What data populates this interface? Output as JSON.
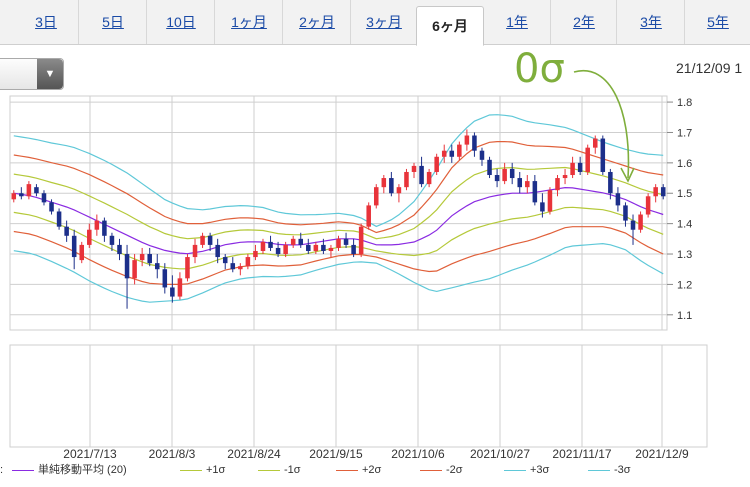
{
  "tabs": [
    {
      "label": "3日",
      "active": false
    },
    {
      "label": "5日",
      "active": false
    },
    {
      "label": "10日",
      "active": false
    },
    {
      "label": "1ヶ月",
      "active": false
    },
    {
      "label": "2ヶ月",
      "active": false
    },
    {
      "label": "3ヶ月",
      "active": false
    },
    {
      "label": "6ヶ月",
      "active": true
    },
    {
      "label": "1年",
      "active": false
    },
    {
      "label": "2年",
      "active": false
    },
    {
      "label": "3年",
      "active": false
    },
    {
      "label": "5年",
      "active": false
    }
  ],
  "annotation": "0σ",
  "date_label": "21/12/09 1",
  "legend_prefix": ":",
  "legend": [
    {
      "label": "単純移動平均 (20)",
      "color": "#8a2be2"
    },
    {
      "label": "+1σ",
      "color": "#b5c93a"
    },
    {
      "label": "-1σ",
      "color": "#b5c93a"
    },
    {
      "label": "+2σ",
      "color": "#e0603a"
    },
    {
      "label": "-2σ",
      "color": "#e0603a"
    },
    {
      "label": "+3σ",
      "color": "#5fc8d8"
    },
    {
      "label": "-3σ",
      "color": "#5fc8d8"
    }
  ],
  "colors": {
    "up": "#e8333a",
    "down": "#1c2f8a",
    "grid": "#cfcfcf",
    "arrow": "#7fae3c"
  },
  "chart_data": {
    "type": "candlestick",
    "y_ticks": [
      "1.8",
      "1.7",
      "1.6",
      "1.5",
      "1.4",
      "1.3",
      "1.2",
      "1.1"
    ],
    "ylim": [
      1.05,
      1.82
    ],
    "x_ticks": [
      "2021/7/13",
      "2021/8/3",
      "2021/8/24",
      "2021/9/15",
      "2021/10/6",
      "2021/10/27",
      "2021/11/17",
      "2021/12/9"
    ],
    "sma20": [
      1.5,
      1.49,
      1.47,
      1.45,
      1.42,
      1.39,
      1.36,
      1.33,
      1.31,
      1.3,
      1.31,
      1.33,
      1.34,
      1.34,
      1.33,
      1.33,
      1.34,
      1.35,
      1.35,
      1.33,
      1.33,
      1.34,
      1.37,
      1.43,
      1.47,
      1.49,
      1.5,
      1.5,
      1.51,
      1.52,
      1.51,
      1.5,
      1.48,
      1.45,
      1.43
    ],
    "sigma1": [
      0.063,
      0.063,
      0.065,
      0.068,
      0.07,
      0.07,
      0.068,
      0.063,
      0.055,
      0.05,
      0.045,
      0.042,
      0.04,
      0.038,
      0.035,
      0.033,
      0.03,
      0.028,
      0.025,
      0.02,
      0.03,
      0.045,
      0.065,
      0.08,
      0.088,
      0.09,
      0.085,
      0.078,
      0.072,
      0.065,
      0.06,
      0.055,
      0.055,
      0.06,
      0.065
    ],
    "candles": [
      [
        1.48,
        1.51,
        1.47,
        1.5
      ],
      [
        1.5,
        1.52,
        1.48,
        1.49
      ],
      [
        1.49,
        1.54,
        1.48,
        1.53
      ],
      [
        1.52,
        1.53,
        1.49,
        1.5
      ],
      [
        1.5,
        1.51,
        1.46,
        1.47
      ],
      [
        1.47,
        1.48,
        1.43,
        1.44
      ],
      [
        1.44,
        1.45,
        1.38,
        1.39
      ],
      [
        1.39,
        1.41,
        1.34,
        1.36
      ],
      [
        1.36,
        1.38,
        1.25,
        1.29
      ],
      [
        1.28,
        1.34,
        1.27,
        1.33
      ],
      [
        1.33,
        1.4,
        1.32,
        1.38
      ],
      [
        1.38,
        1.43,
        1.36,
        1.41
      ],
      [
        1.41,
        1.42,
        1.34,
        1.36
      ],
      [
        1.36,
        1.37,
        1.31,
        1.33
      ],
      [
        1.33,
        1.35,
        1.28,
        1.3
      ],
      [
        1.3,
        1.33,
        1.12,
        1.22
      ],
      [
        1.22,
        1.3,
        1.2,
        1.28
      ],
      [
        1.28,
        1.32,
        1.26,
        1.3
      ],
      [
        1.3,
        1.32,
        1.26,
        1.27
      ],
      [
        1.27,
        1.3,
        1.22,
        1.25
      ],
      [
        1.25,
        1.27,
        1.17,
        1.19
      ],
      [
        1.19,
        1.23,
        1.14,
        1.16
      ],
      [
        1.16,
        1.24,
        1.15,
        1.22
      ],
      [
        1.22,
        1.3,
        1.21,
        1.29
      ],
      [
        1.29,
        1.35,
        1.27,
        1.33
      ],
      [
        1.33,
        1.37,
        1.32,
        1.36
      ],
      [
        1.36,
        1.37,
        1.31,
        1.33
      ],
      [
        1.33,
        1.35,
        1.27,
        1.29
      ],
      [
        1.29,
        1.3,
        1.25,
        1.27
      ],
      [
        1.27,
        1.29,
        1.24,
        1.25
      ],
      [
        1.25,
        1.27,
        1.23,
        1.26
      ],
      [
        1.26,
        1.3,
        1.25,
        1.29
      ],
      [
        1.29,
        1.33,
        1.28,
        1.31
      ],
      [
        1.31,
        1.35,
        1.3,
        1.34
      ],
      [
        1.34,
        1.36,
        1.31,
        1.32
      ],
      [
        1.32,
        1.34,
        1.29,
        1.3
      ],
      [
        1.3,
        1.34,
        1.29,
        1.33
      ],
      [
        1.33,
        1.36,
        1.32,
        1.35
      ],
      [
        1.35,
        1.37,
        1.32,
        1.33
      ],
      [
        1.33,
        1.35,
        1.3,
        1.31
      ],
      [
        1.31,
        1.34,
        1.3,
        1.33
      ],
      [
        1.33,
        1.35,
        1.3,
        1.31
      ],
      [
        1.31,
        1.33,
        1.29,
        1.32
      ],
      [
        1.32,
        1.36,
        1.31,
        1.35
      ],
      [
        1.35,
        1.37,
        1.32,
        1.33
      ],
      [
        1.33,
        1.35,
        1.29,
        1.3
      ],
      [
        1.3,
        1.4,
        1.29,
        1.39
      ],
      [
        1.39,
        1.47,
        1.38,
        1.46
      ],
      [
        1.46,
        1.53,
        1.45,
        1.52
      ],
      [
        1.52,
        1.56,
        1.5,
        1.55
      ],
      [
        1.55,
        1.57,
        1.49,
        1.5
      ],
      [
        1.5,
        1.53,
        1.47,
        1.52
      ],
      [
        1.52,
        1.58,
        1.51,
        1.57
      ],
      [
        1.57,
        1.6,
        1.55,
        1.59
      ],
      [
        1.59,
        1.62,
        1.52,
        1.53
      ],
      [
        1.53,
        1.58,
        1.52,
        1.57
      ],
      [
        1.57,
        1.63,
        1.56,
        1.62
      ],
      [
        1.62,
        1.66,
        1.6,
        1.64
      ],
      [
        1.64,
        1.66,
        1.6,
        1.62
      ],
      [
        1.62,
        1.67,
        1.61,
        1.66
      ],
      [
        1.66,
        1.71,
        1.64,
        1.69
      ],
      [
        1.69,
        1.7,
        1.62,
        1.64
      ],
      [
        1.64,
        1.65,
        1.59,
        1.61
      ],
      [
        1.61,
        1.62,
        1.55,
        1.56
      ],
      [
        1.56,
        1.58,
        1.52,
        1.54
      ],
      [
        1.54,
        1.6,
        1.53,
        1.58
      ],
      [
        1.58,
        1.6,
        1.53,
        1.55
      ],
      [
        1.55,
        1.57,
        1.5,
        1.52
      ],
      [
        1.52,
        1.56,
        1.5,
        1.54
      ],
      [
        1.54,
        1.56,
        1.46,
        1.47
      ],
      [
        1.47,
        1.5,
        1.42,
        1.44
      ],
      [
        1.44,
        1.52,
        1.43,
        1.51
      ],
      [
        1.51,
        1.56,
        1.49,
        1.55
      ],
      [
        1.55,
        1.58,
        1.53,
        1.56
      ],
      [
        1.56,
        1.62,
        1.55,
        1.6
      ],
      [
        1.6,
        1.62,
        1.56,
        1.57
      ],
      [
        1.57,
        1.66,
        1.56,
        1.65
      ],
      [
        1.65,
        1.69,
        1.63,
        1.68
      ],
      [
        1.68,
        1.69,
        1.56,
        1.57
      ],
      [
        1.57,
        1.58,
        1.48,
        1.5
      ],
      [
        1.5,
        1.52,
        1.44,
        1.46
      ],
      [
        1.46,
        1.47,
        1.39,
        1.41
      ],
      [
        1.41,
        1.43,
        1.33,
        1.38
      ],
      [
        1.38,
        1.44,
        1.37,
        1.43
      ],
      [
        1.43,
        1.5,
        1.42,
        1.49
      ],
      [
        1.49,
        1.53,
        1.47,
        1.52
      ],
      [
        1.52,
        1.53,
        1.48,
        1.49
      ]
    ]
  }
}
